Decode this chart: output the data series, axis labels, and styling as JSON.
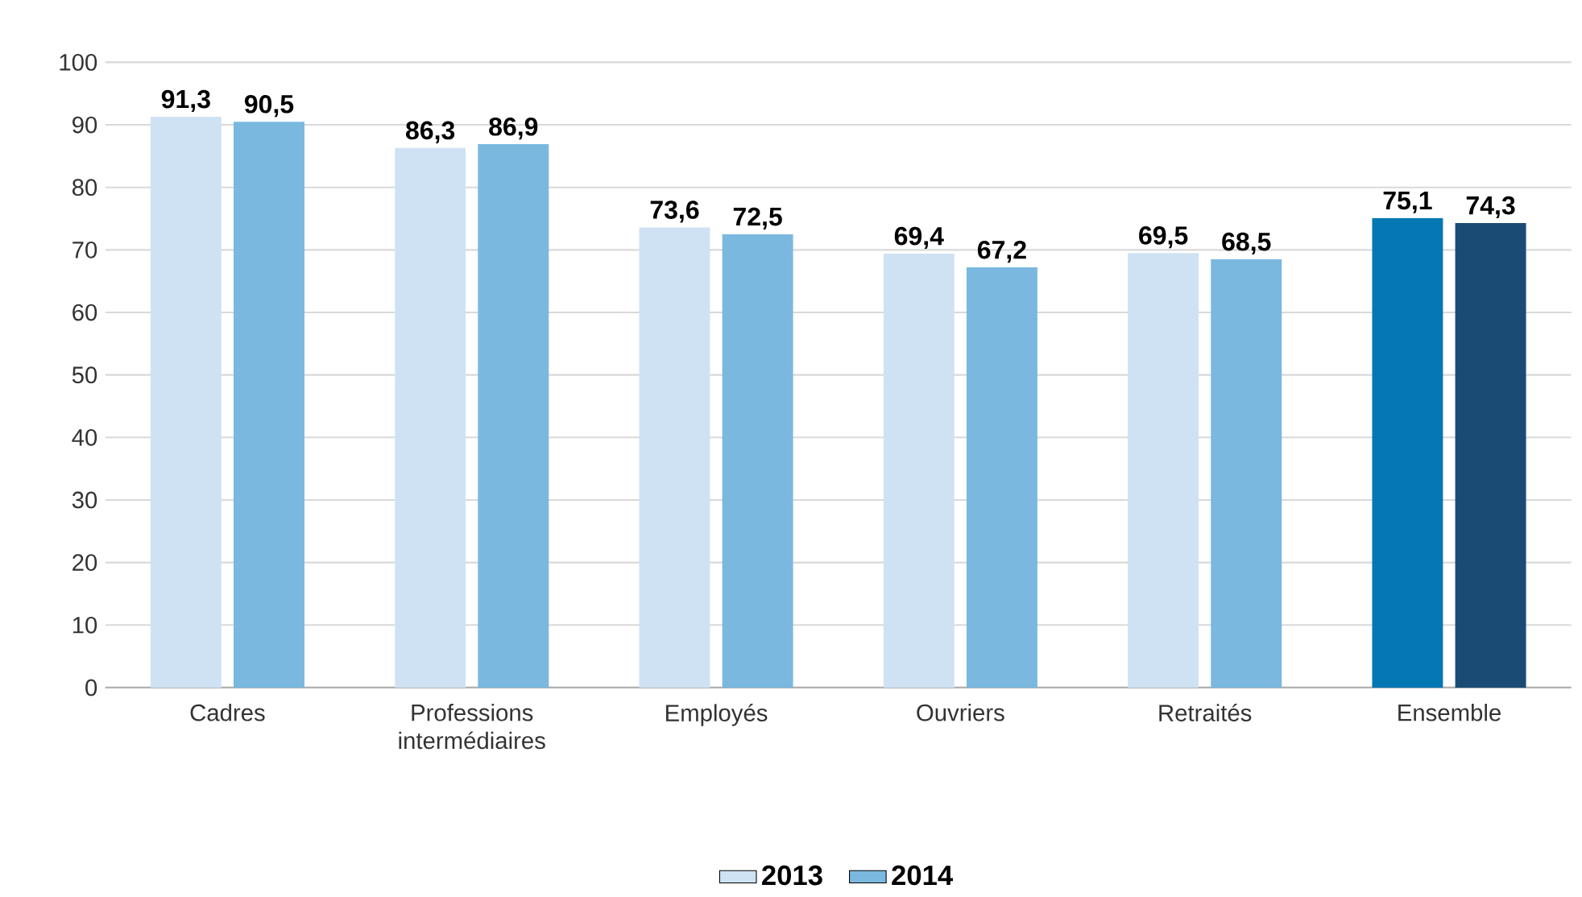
{
  "chart_data": {
    "type": "bar",
    "categories": [
      "Cadres",
      "Professions intermédiaires",
      "Employés",
      "Ouvriers",
      "Retraités",
      "Ensemble"
    ],
    "series": [
      {
        "name": "2013",
        "color": "#cfe2f3",
        "colors": [
          "#cfe2f3",
          "#cfe2f3",
          "#cfe2f3",
          "#cfe2f3",
          "#cfe2f3",
          "#0577b3"
        ],
        "values": [
          91.3,
          86.3,
          73.6,
          69.4,
          69.5,
          75.1
        ],
        "value_labels": [
          "91,3",
          "86,3",
          "73,6",
          "69,4",
          "69,5",
          "75,1"
        ]
      },
      {
        "name": "2014",
        "color": "#7ab8e0",
        "colors": [
          "#7ab8e0",
          "#7ab8e0",
          "#7ab8e0",
          "#7ab8e0",
          "#7ab8e0",
          "#1a4b74"
        ],
        "values": [
          90.5,
          86.9,
          72.5,
          67.2,
          68.5,
          74.3
        ],
        "value_labels": [
          "90,5",
          "86,9",
          "72,5",
          "67,2",
          "68,5",
          "74,3"
        ]
      }
    ],
    "ylim": [
      0,
      100
    ],
    "yticks": [
      0,
      10,
      20,
      30,
      40,
      50,
      60,
      70,
      80,
      90,
      100
    ],
    "grid": "y",
    "legend": "bottom"
  }
}
